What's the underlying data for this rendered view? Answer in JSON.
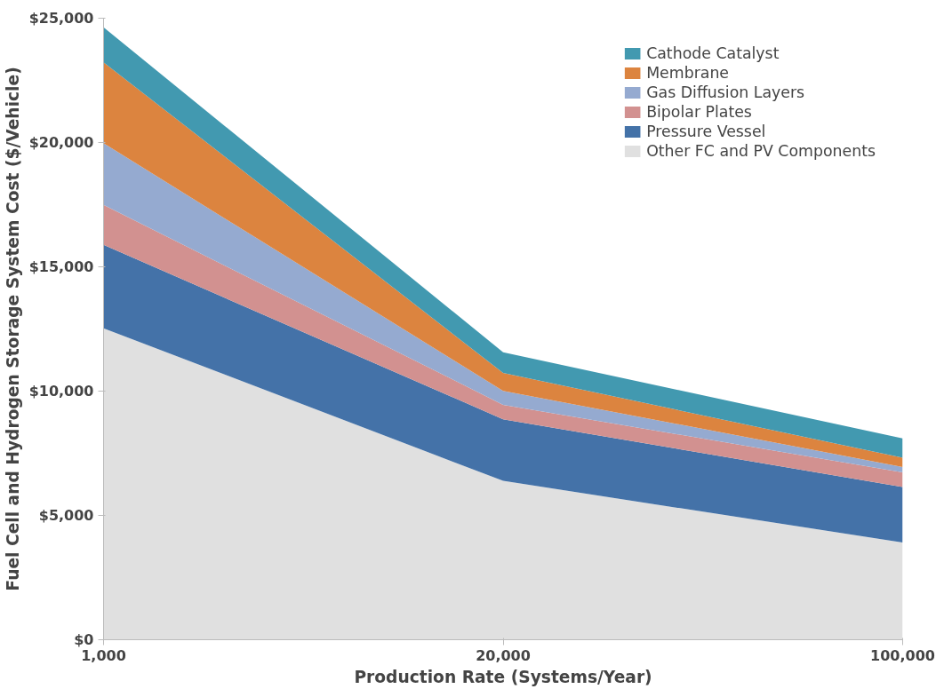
{
  "chart_data": {
    "type": "area",
    "stacked": true,
    "xlabel": "Production Rate (Systems/Year)",
    "ylabel": "Fuel Cell and Hydrogen Storage System Cost ($/Vehicle)",
    "categories": [
      "1,000",
      "20,000",
      "100,000"
    ],
    "series": [
      {
        "name": "Other FC and PV Components",
        "color": "#e0e0e0",
        "values": [
          12530,
          6390,
          3910
        ]
      },
      {
        "name": "Pressure Vessel",
        "color": "#4472a8",
        "values": [
          3350,
          2480,
          2230
        ]
      },
      {
        "name": "Bipolar Plates",
        "color": "#d29190",
        "values": [
          1610,
          580,
          590
        ]
      },
      {
        "name": "Gas Diffusion Layers",
        "color": "#95aad0",
        "values": [
          2480,
          560,
          220
        ]
      },
      {
        "name": "Membrane",
        "color": "#dc843f",
        "values": [
          3250,
          720,
          370
        ]
      },
      {
        "name": "Cathode Catalyst",
        "color": "#4299b0",
        "values": [
          1410,
          830,
          780
        ]
      }
    ],
    "ylim": [
      0,
      25000
    ],
    "yticks": [
      {
        "value": 0,
        "label": "$0"
      },
      {
        "value": 5000,
        "label": "$5,000"
      },
      {
        "value": 10000,
        "label": "$10,000"
      },
      {
        "value": 15000,
        "label": "$15,000"
      },
      {
        "value": 20000,
        "label": "$20,000"
      },
      {
        "value": 25000,
        "label": "$25,000"
      }
    ],
    "grid": false,
    "legend": "top right"
  }
}
